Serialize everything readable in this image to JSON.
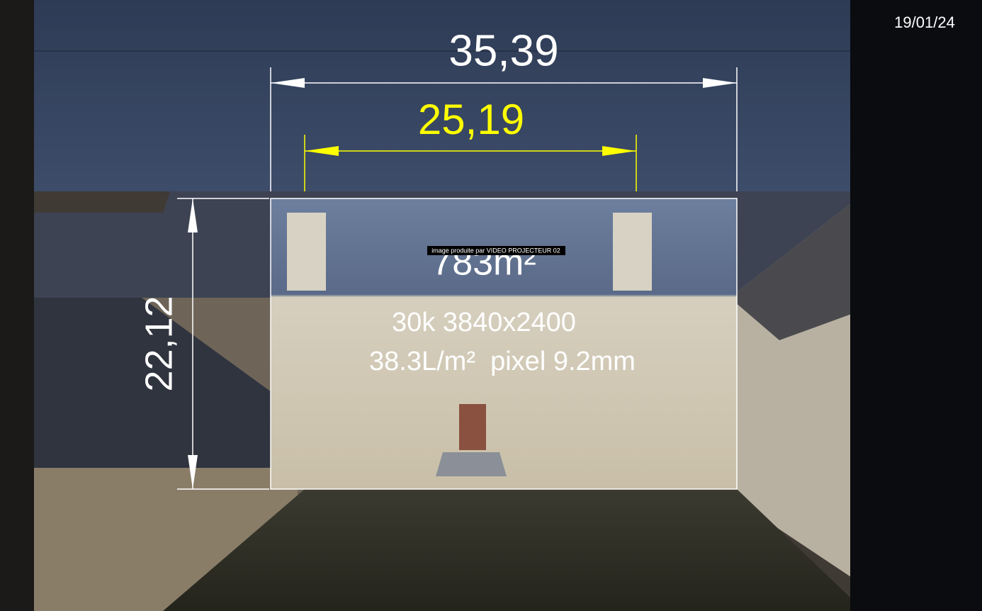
{
  "date": "19/01/24",
  "dimensions": {
    "outer_width": "35,39",
    "inner_width": "25,19",
    "height": "22,12"
  },
  "projection": {
    "area": "783m²",
    "caption": "image produite par VIDEO PROJECTEUR 02",
    "resolution": "30k 3840x2400",
    "specs": "38.3L/m²  pixel 9.2mm"
  }
}
